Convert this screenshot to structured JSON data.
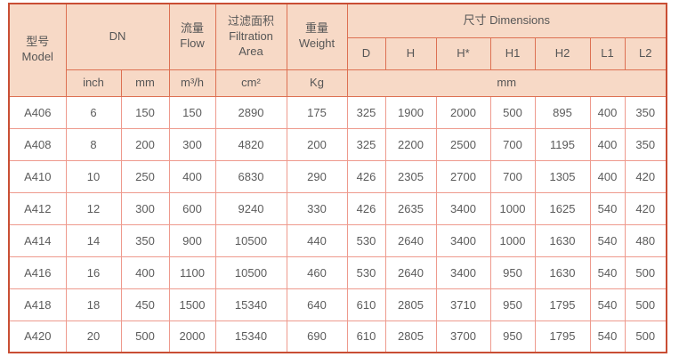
{
  "colors": {
    "header_background": "#f7d9c6",
    "header_border": "#dd7052",
    "outer_border": "#c94e34",
    "grid_border": "#ee9a8d",
    "text": "#585858"
  },
  "table": {
    "header": {
      "model_zh": "型号",
      "model_en": "Model",
      "dn_label": "DN",
      "flow_zh": "流量",
      "flow_en": "Flow",
      "filtration_zh": "过滤面积",
      "filtration_en": "Filtration Area",
      "weight_zh": "重量",
      "weight_en": "Weight",
      "dimensions_label": "尺寸 Dimensions",
      "dim_columns": [
        "D",
        "H",
        "H*",
        "H1",
        "H2",
        "L1",
        "L2"
      ],
      "unit_inch": "inch",
      "unit_mm": "mm",
      "unit_flow": "m³/h",
      "unit_area": "cm²",
      "unit_weight": "Kg",
      "unit_dims": "mm"
    },
    "column_keys": [
      "model",
      "inch",
      "mm",
      "flow",
      "area",
      "weight",
      "d",
      "h",
      "hstar",
      "h1",
      "h2",
      "l1",
      "l2"
    ],
    "rows": [
      [
        "A406",
        "6",
        "150",
        "150",
        "2890",
        "175",
        "325",
        "1900",
        "2000",
        "500",
        "895",
        "400",
        "350"
      ],
      [
        "A408",
        "8",
        "200",
        "300",
        "4820",
        "200",
        "325",
        "2200",
        "2500",
        "700",
        "1195",
        "400",
        "350"
      ],
      [
        "A410",
        "10",
        "250",
        "400",
        "6830",
        "290",
        "426",
        "2305",
        "2700",
        "700",
        "1305",
        "400",
        "420"
      ],
      [
        "A412",
        "12",
        "300",
        "600",
        "9240",
        "330",
        "426",
        "2635",
        "3400",
        "1000",
        "1625",
        "540",
        "420"
      ],
      [
        "A414",
        "14",
        "350",
        "900",
        "10500",
        "440",
        "530",
        "2640",
        "3400",
        "1000",
        "1630",
        "540",
        "480"
      ],
      [
        "A416",
        "16",
        "400",
        "1100",
        "10500",
        "460",
        "530",
        "2640",
        "3400",
        "950",
        "1630",
        "540",
        "500"
      ],
      [
        "A418",
        "18",
        "450",
        "1500",
        "15340",
        "640",
        "610",
        "2805",
        "3710",
        "950",
        "1795",
        "540",
        "500"
      ],
      [
        "A420",
        "20",
        "500",
        "2000",
        "15340",
        "690",
        "610",
        "2805",
        "3700",
        "950",
        "1795",
        "540",
        "500"
      ]
    ]
  }
}
